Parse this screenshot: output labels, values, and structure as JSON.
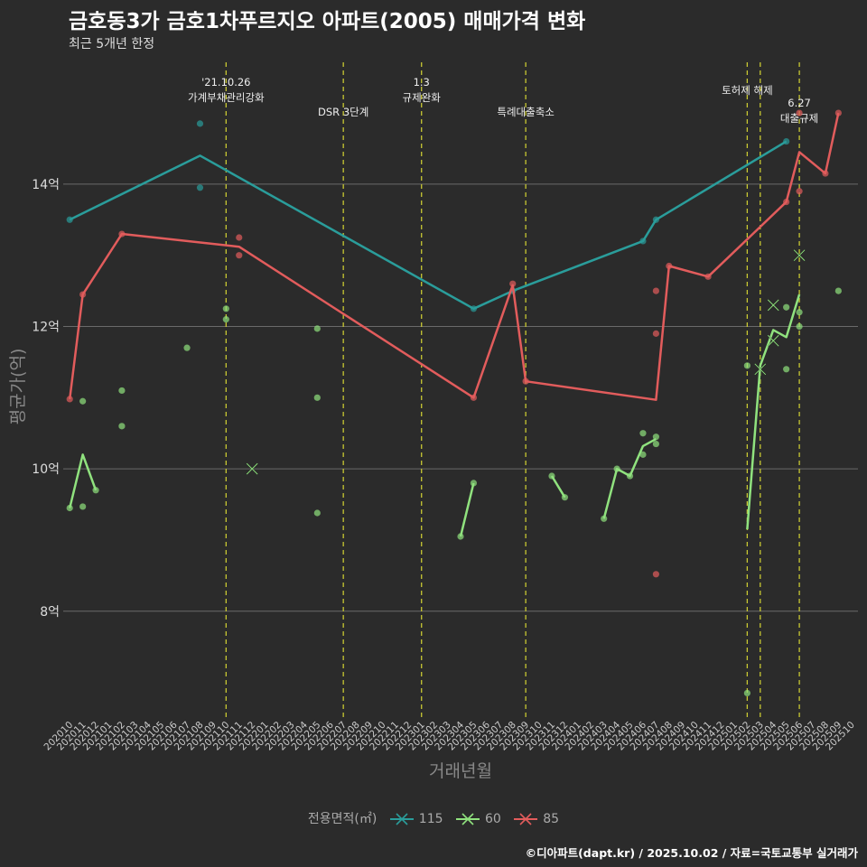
{
  "header": {
    "title": "금호동3가 금호1차푸르지오 아파트(2005) 매매가격 변화",
    "subtitle": "최근 5개년 한정"
  },
  "footer": {
    "caption": "©디아파트(dapt.kr) / 2025.10.02 / 자료=국토교통부 실거래가"
  },
  "legend": {
    "title": "전용면적(㎡)",
    "items": [
      {
        "label": "115",
        "color": "#2a9d9b"
      },
      {
        "label": "60",
        "color": "#90e27e"
      },
      {
        "label": "85",
        "color": "#e25c5c"
      }
    ]
  },
  "chart_data": {
    "type": "line",
    "title": "금호동3가 금호1차푸르지오 아파트(2005) 매매가격 변화",
    "subtitle": "최근 5개년 한정",
    "xlabel": "거래년월",
    "ylabel": "평균가(억)",
    "categories": [
      "202010",
      "202011",
      "202012",
      "202101",
      "202102",
      "202103",
      "202104",
      "202105",
      "202106",
      "202107",
      "202108",
      "202109",
      "202110",
      "202111",
      "202112",
      "202201",
      "202202",
      "202203",
      "202204",
      "202205",
      "202206",
      "202207",
      "202208",
      "202209",
      "202210",
      "202211",
      "202212",
      "202301",
      "202302",
      "202303",
      "202304",
      "202305",
      "202306",
      "202307",
      "202308",
      "202309",
      "202310",
      "202311",
      "202312",
      "202401",
      "202402",
      "202403",
      "202404",
      "202405",
      "202406",
      "202407",
      "202408",
      "202409",
      "202410",
      "202411",
      "202412",
      "202501",
      "202502",
      "202503",
      "202504",
      "202505",
      "202506",
      "202507",
      "202508",
      "202509",
      "202510"
    ],
    "ylim": [
      6.5,
      15.8
    ],
    "yticks": [
      8,
      10,
      12,
      14
    ],
    "ytick_labels": [
      "8억",
      "10억",
      "12억",
      "14억"
    ],
    "series": [
      {
        "name": "115",
        "color": "#2a9d9b",
        "line": [
          [
            "202010",
            13.5
          ],
          [
            "202108",
            14.4
          ],
          [
            "202305",
            12.25
          ],
          [
            "202308",
            12.5
          ],
          [
            "202406",
            13.2
          ],
          [
            "202407",
            13.5
          ],
          [
            "202505",
            14.6
          ]
        ],
        "points": [
          [
            "202010",
            13.5
          ],
          [
            "202108",
            14.85
          ],
          [
            "202108",
            13.95
          ],
          [
            "202305",
            12.25
          ],
          [
            "202308",
            12.5
          ],
          [
            "202406",
            13.2
          ],
          [
            "202407",
            13.5
          ],
          [
            "202505",
            14.6
          ]
        ],
        "crosses": []
      },
      {
        "name": "60",
        "color": "#90e27e",
        "line": [
          [
            "202010",
            9.45
          ],
          [
            "202011",
            10.2
          ],
          [
            "202012",
            9.7
          ],
          null,
          [
            "202304",
            9.05
          ],
          [
            "202305",
            9.8
          ],
          null,
          [
            "202311",
            9.9
          ],
          [
            "202312",
            9.6
          ],
          null,
          [
            "202403",
            9.3
          ],
          [
            "202404",
            10.0
          ],
          [
            "202405",
            9.9
          ],
          [
            "202406",
            10.32
          ],
          [
            "202407",
            10.42
          ],
          null,
          [
            "202502",
            9.15
          ],
          [
            "202503",
            11.45
          ],
          [
            "202504",
            11.95
          ],
          [
            "202505",
            11.85
          ],
          [
            "202506",
            12.45
          ]
        ],
        "points": [
          [
            "202010",
            9.45
          ],
          [
            "202011",
            10.95
          ],
          [
            "202011",
            9.47
          ],
          [
            "202012",
            9.7
          ],
          [
            "202102",
            11.1
          ],
          [
            "202102",
            10.6
          ],
          [
            "202107",
            11.7
          ],
          [
            "202110",
            12.25
          ],
          [
            "202110",
            12.1
          ],
          [
            "202205",
            11.97
          ],
          [
            "202205",
            11.0
          ],
          [
            "202205",
            9.38
          ],
          [
            "202304",
            9.05
          ],
          [
            "202305",
            9.8
          ],
          [
            "202311",
            9.9
          ],
          [
            "202312",
            9.6
          ],
          [
            "202403",
            9.3
          ],
          [
            "202404",
            10.0
          ],
          [
            "202405",
            9.9
          ],
          [
            "202406",
            10.5
          ],
          [
            "202406",
            10.2
          ],
          [
            "202407",
            10.45
          ],
          [
            "202407",
            10.35
          ],
          [
            "202502",
            11.45
          ],
          [
            "202502",
            6.85
          ],
          [
            "202505",
            12.27
          ],
          [
            "202505",
            11.4
          ],
          [
            "202506",
            12.2
          ],
          [
            "202506",
            12.0
          ],
          [
            "202509",
            12.5
          ]
        ],
        "crosses": [
          [
            "202112",
            10.0
          ],
          [
            "202503",
            11.4
          ],
          [
            "202504",
            12.3
          ],
          [
            "202504",
            11.8
          ],
          [
            "202506",
            13.0
          ]
        ]
      },
      {
        "name": "85",
        "color": "#e25c5c",
        "line": [
          [
            "202010",
            10.98
          ],
          [
            "202011",
            12.45
          ],
          [
            "202102",
            13.3
          ],
          [
            "202111",
            13.12
          ],
          [
            "202305",
            11.0
          ],
          [
            "202308",
            12.58
          ],
          [
            "202309",
            11.23
          ],
          [
            "202407",
            10.97
          ],
          [
            "202408",
            12.85
          ],
          [
            "202411",
            12.7
          ],
          [
            "202505",
            13.75
          ],
          [
            "202506",
            14.45
          ],
          [
            "202508",
            14.15
          ],
          [
            "202509",
            15.0
          ]
        ],
        "points": [
          [
            "202010",
            10.98
          ],
          [
            "202011",
            12.45
          ],
          [
            "202102",
            13.3
          ],
          [
            "202111",
            13.25
          ],
          [
            "202111",
            13.0
          ],
          [
            "202305",
            11.0
          ],
          [
            "202308",
            12.6
          ],
          [
            "202309",
            11.23
          ],
          [
            "202407",
            12.5
          ],
          [
            "202407",
            11.9
          ],
          [
            "202407",
            8.52
          ],
          [
            "202408",
            12.85
          ],
          [
            "202411",
            12.7
          ],
          [
            "202505",
            13.75
          ],
          [
            "202506",
            15.0
          ],
          [
            "202506",
            13.9
          ],
          [
            "202508",
            14.15
          ],
          [
            "202509",
            15.0
          ]
        ],
        "crosses": []
      }
    ],
    "annotations": [
      {
        "x": "202110",
        "lines": [
          "'21.10.26",
          "가계부채관리강화"
        ]
      },
      {
        "x": "202207",
        "lines": [
          "DSR 3단계"
        ]
      },
      {
        "x": "202301",
        "lines": [
          "1.3",
          "규제완화"
        ]
      },
      {
        "x": "202309",
        "lines": [
          "특례대출축소"
        ]
      },
      {
        "x": "202502",
        "lines": [
          "토허제 해제"
        ]
      },
      {
        "x": "202503",
        "lines": []
      },
      {
        "x": "202506",
        "lines": [
          "6.27",
          "대출규제"
        ]
      }
    ],
    "grid": true,
    "legend_position": "bottom"
  }
}
